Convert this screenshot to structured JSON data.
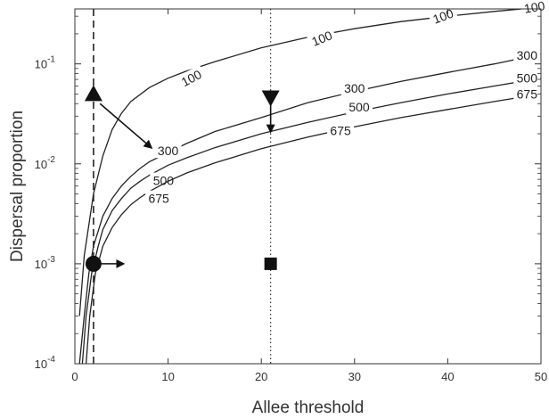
{
  "chart_data": {
    "type": "line",
    "xlabel": "Allee threshold",
    "ylabel": "Dispersal proportion",
    "xlim": [
      0,
      50
    ],
    "ylim_log10": [
      -4,
      -0.45
    ],
    "y_scale": "log",
    "x_ticks": [
      0,
      10,
      20,
      30,
      40,
      50
    ],
    "y_ticks": [
      {
        "base": "10",
        "exp": "-4",
        "value": 0.0001
      },
      {
        "base": "10",
        "exp": "-3",
        "value": 0.001
      },
      {
        "base": "10",
        "exp": "-2",
        "value": 0.01
      },
      {
        "base": "10",
        "exp": "-1",
        "value": 0.1
      }
    ],
    "series": [
      {
        "name": "100",
        "x": [
          0.5,
          1.0,
          2.0,
          3.0,
          4.0,
          5.0,
          6.0,
          8.0,
          10.0,
          12.0,
          15.0,
          20.0,
          25.0,
          30.0,
          35.0,
          40.0,
          45.0,
          50.0
        ],
        "y": [
          0.0003,
          0.0012,
          0.005,
          0.012,
          0.022,
          0.032,
          0.042,
          0.058,
          0.072,
          0.085,
          0.105,
          0.145,
          0.185,
          0.225,
          0.265,
          0.3,
          0.335,
          0.37
        ],
        "labels": [
          {
            "x": 12.5,
            "y": 0.072,
            "rot": -28
          },
          {
            "x": 26.5,
            "y": 0.18,
            "rot": -22
          },
          {
            "x": 39.5,
            "y": 0.3,
            "rot": -20
          },
          {
            "x": 49.3,
            "y": 0.37,
            "rot": -10
          }
        ]
      },
      {
        "name": "300",
        "x": [
          0.5,
          1.0,
          1.5,
          2.0,
          3.0,
          4.0,
          5.0,
          6.0,
          7.0,
          8.0,
          10.0,
          12.0,
          15.0,
          20.0,
          25.0,
          30.0,
          35.0,
          40.0,
          45.0,
          50.0
        ],
        "y": [
          0.0001,
          0.0003,
          0.0008,
          0.0015,
          0.003,
          0.0045,
          0.006,
          0.0075,
          0.009,
          0.0105,
          0.013,
          0.016,
          0.021,
          0.029,
          0.041,
          0.053,
          0.067,
          0.082,
          0.1,
          0.125
        ],
        "labels": [
          {
            "x": 10.0,
            "y": 0.0135,
            "rot": 0
          },
          {
            "x": 30.0,
            "y": 0.057,
            "rot": 0
          },
          {
            "x": 48.5,
            "y": 0.122,
            "rot": 0
          }
        ]
      },
      {
        "name": "500",
        "x": [
          0.8,
          1.2,
          1.8,
          2.5,
          3.0,
          4.0,
          5.0,
          6.0,
          7.0,
          8.0,
          10.0,
          12.0,
          15.0,
          20.0,
          25.0,
          30.0,
          35.0,
          40.0,
          45.0,
          50.0
        ],
        "y": [
          0.0001,
          0.0003,
          0.0008,
          0.0015,
          0.0022,
          0.0034,
          0.0045,
          0.0057,
          0.0067,
          0.0077,
          0.0097,
          0.0115,
          0.0145,
          0.02,
          0.026,
          0.033,
          0.041,
          0.05,
          0.06,
          0.072
        ],
        "labels": [
          {
            "x": 9.5,
            "y": 0.0068,
            "rot": 0
          },
          {
            "x": 30.5,
            "y": 0.037,
            "rot": 0
          },
          {
            "x": 48.5,
            "y": 0.072,
            "rot": 0
          }
        ]
      },
      {
        "name": "675",
        "x": [
          1.2,
          1.6,
          2.2,
          3.0,
          4.0,
          5.0,
          6.0,
          7.0,
          8.0,
          10.0,
          12.0,
          15.0,
          20.0,
          25.0,
          30.0,
          35.0,
          40.0,
          45.0,
          50.0
        ],
        "y": [
          0.0001,
          0.0003,
          0.0008,
          0.0015,
          0.0023,
          0.0031,
          0.0039,
          0.0046,
          0.0053,
          0.0067,
          0.0081,
          0.0102,
          0.0142,
          0.0185,
          0.0235,
          0.029,
          0.035,
          0.042,
          0.05
        ],
        "labels": [
          {
            "x": 9.0,
            "y": 0.0045,
            "rot": 0
          },
          {
            "x": 28.5,
            "y": 0.0215,
            "rot": 0
          },
          {
            "x": 48.5,
            "y": 0.05,
            "rot": 0
          }
        ]
      }
    ],
    "reference_lines": [
      {
        "x": 2.0,
        "style": "dashed"
      },
      {
        "x": 21.0,
        "style": "dotted"
      }
    ],
    "markers": [
      {
        "shape": "triangle-up",
        "x": 2.0,
        "y": 0.05
      },
      {
        "shape": "triangle-down",
        "x": 21.0,
        "y": 0.046
      },
      {
        "shape": "circle",
        "x": 2.0,
        "y": 0.001
      },
      {
        "shape": "square",
        "x": 21.0,
        "y": 0.001
      }
    ],
    "arrows": [
      {
        "from": [
          2.7,
          0.04
        ],
        "to": [
          8.2,
          0.0145
        ]
      },
      {
        "from": [
          21.0,
          0.039
        ],
        "to": [
          21.0,
          0.021
        ]
      },
      {
        "from": [
          2.7,
          0.001
        ],
        "to": [
          5.2,
          0.001
        ]
      }
    ],
    "grid": false,
    "legend": "none"
  }
}
